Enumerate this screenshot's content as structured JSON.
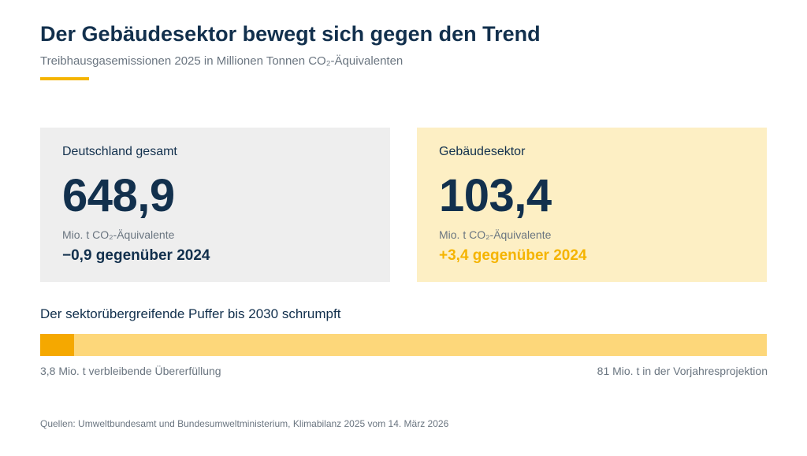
{
  "header": {
    "title": "Der Gebäudesektor bewegt sich gegen den Trend",
    "subtitle": "Treibhausgasemissionen 2025 in Millionen Tonnen CO₂-Äquivalenten"
  },
  "cards": {
    "total": {
      "label": "Deutschland gesamt",
      "value": "648,9",
      "unit": "Mio. t CO₂-Äquivalente",
      "change": "−0,9 gegenüber 2024"
    },
    "sector": {
      "label": "Gebäudesektor",
      "value": "103,4",
      "unit": "Mio. t CO₂-Äquivalente",
      "change": "+3,4 gegenüber 2024"
    }
  },
  "buffer": {
    "heading": "Der sektorübergreifende Puffer bis 2030 schrumpft",
    "left_label": "3,8 Mio. t verbleibende Übererfüllung",
    "right_label": "81 Mio. t in der Vorjahresprojektion"
  },
  "chart_data": {
    "type": "bar",
    "categories": [
      "verbleibende Übererfüllung",
      "Vorjahresprojektion"
    ],
    "values": [
      3.8,
      81
    ],
    "title": "Der sektorübergreifende Puffer bis 2030 schrumpft",
    "xlabel": "",
    "ylabel": "",
    "unit": "Mio. t",
    "xlim": [
      0,
      81
    ],
    "grid": false,
    "legend": "none"
  },
  "colors": {
    "accent": "#f5b400",
    "fill_dark": "#f5a800",
    "fill_light": "#fdd77a",
    "text_dark": "#12304d",
    "text_muted": "#6a7580",
    "card_total_bg": "#eeeeee",
    "card_sector_bg": "#fdefc4"
  },
  "footer": {
    "source": "Quellen: Umweltbundesamt und Bundesumweltministerium, Klimabilanz 2025 vom 14. März 2026"
  }
}
